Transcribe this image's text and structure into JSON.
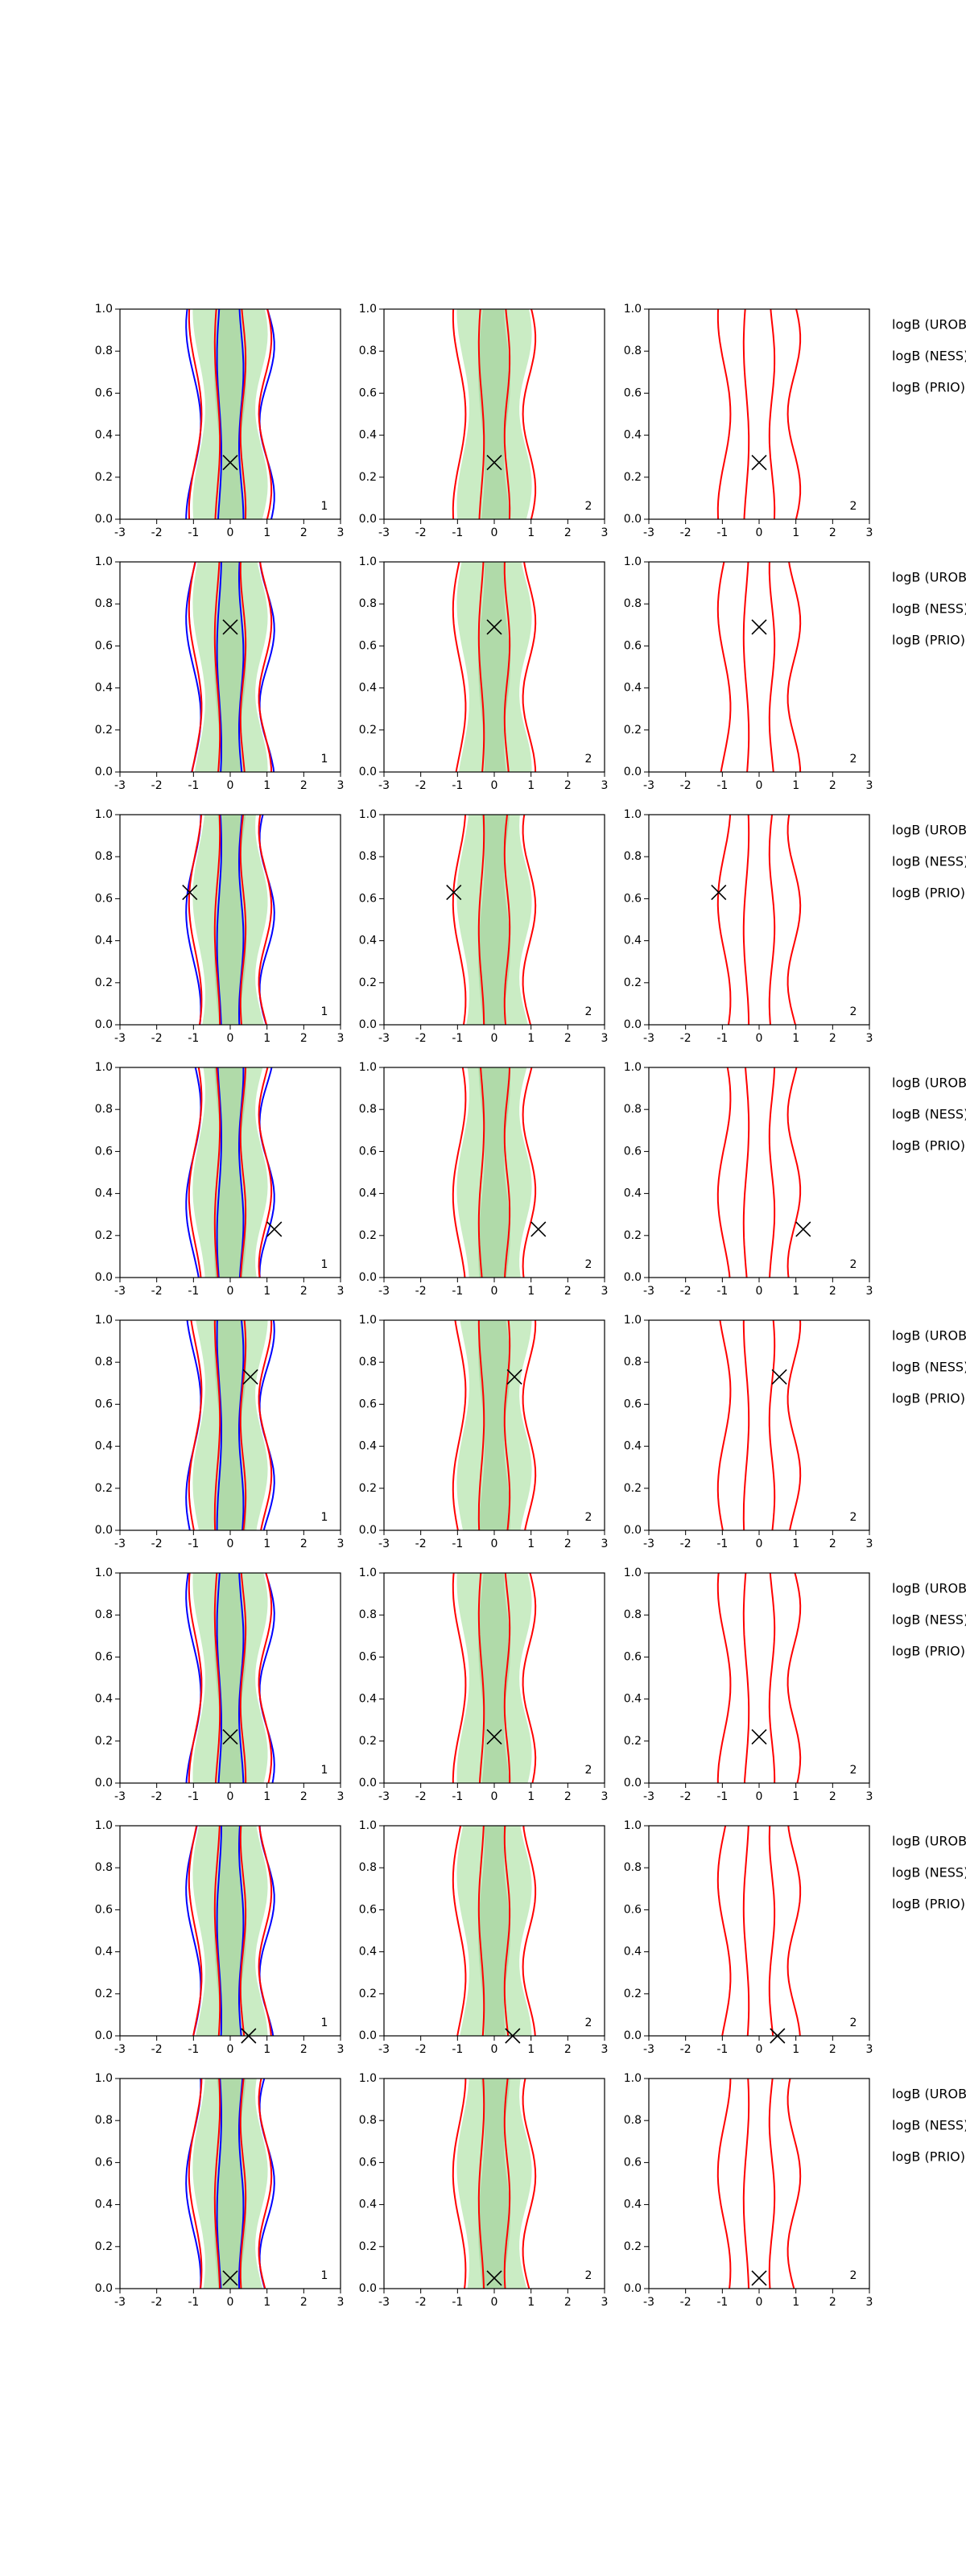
{
  "chart_data": [
    {
      "type": "contour",
      "xlim": [
        -3,
        3
      ],
      "xticks": [
        -3,
        -2,
        -1,
        0,
        1,
        2,
        3
      ],
      "ylim": [
        0,
        1
      ],
      "yticks": [
        {
          "value": 0,
          "label": "0.0"
        },
        {
          "value": 0.2,
          "label": "0.2"
        },
        {
          "value": 0.4,
          "label": "0.4"
        },
        {
          "value": 0.6,
          "label": "0.6"
        },
        {
          "value": 0.8,
          "label": "0.8"
        },
        {
          "value": 1,
          "label": "1.0"
        }
      ],
      "marker": {
        "x": 0,
        "y": 0.27
      },
      "label": "1"
    },
    {
      "type": "contour",
      "xlim": [
        -3,
        3
      ],
      "xticks": [
        -3,
        -2,
        -1,
        0,
        1,
        2,
        3
      ],
      "ylim": [
        0,
        1
      ],
      "yticks": [
        {
          "value": 0,
          "label": "0.0"
        },
        {
          "value": 0.2,
          "label": "0.2"
        },
        {
          "value": 0.4,
          "label": "0.4"
        },
        {
          "value": 0.6,
          "label": "0.6"
        },
        {
          "value": 0.8,
          "label": "0.8"
        },
        {
          "value": 1,
          "label": "1.0"
        }
      ],
      "marker": {
        "x": 0,
        "y": 0.27
      },
      "label": "2"
    },
    {
      "type": "contour",
      "xlim": [
        -3,
        3
      ],
      "xticks": [
        -3,
        -2,
        -1,
        0,
        1,
        2,
        3
      ],
      "ylim": [
        0,
        1
      ],
      "yticks": [
        {
          "value": 0,
          "label": "0.0"
        },
        {
          "value": 0.2,
          "label": "0.2"
        },
        {
          "value": 0.4,
          "label": "0.4"
        },
        {
          "value": 0.6,
          "label": "0.6"
        },
        {
          "value": 0.8,
          "label": "0.8"
        },
        {
          "value": 1,
          "label": "1.0"
        }
      ],
      "marker": {
        "x": 0,
        "y": 0.27
      },
      "label": "2"
    },
    {
      "type": "contour",
      "xlim": [
        -3,
        3
      ],
      "xticks": [
        -3,
        -2,
        -1,
        0,
        1,
        2,
        3
      ],
      "ylim": [
        0,
        1
      ],
      "yticks": [
        {
          "value": 0,
          "label": "0.0"
        },
        {
          "value": 0.2,
          "label": "0.2"
        },
        {
          "value": 0.4,
          "label": "0.4"
        },
        {
          "value": 0.6,
          "label": "0.6"
        },
        {
          "value": 0.8,
          "label": "0.8"
        },
        {
          "value": 1,
          "label": "1.0"
        }
      ],
      "marker": {
        "x": 0,
        "y": 0.69
      },
      "label": "1"
    },
    {
      "type": "contour",
      "xlim": [
        -3,
        3
      ],
      "xticks": [
        -3,
        -2,
        -1,
        0,
        1,
        2,
        3
      ],
      "ylim": [
        0,
        1
      ],
      "yticks": [
        {
          "value": 0,
          "label": "0.0"
        },
        {
          "value": 0.2,
          "label": "0.2"
        },
        {
          "value": 0.4,
          "label": "0.4"
        },
        {
          "value": 0.6,
          "label": "0.6"
        },
        {
          "value": 0.8,
          "label": "0.8"
        },
        {
          "value": 1,
          "label": "1.0"
        }
      ],
      "marker": {
        "x": 0,
        "y": 0.69
      },
      "label": "2"
    },
    {
      "type": "contour",
      "xlim": [
        -3,
        3
      ],
      "xticks": [
        -3,
        -2,
        -1,
        0,
        1,
        2,
        3
      ],
      "ylim": [
        0,
        1
      ],
      "yticks": [
        {
          "value": 0,
          "label": "0.0"
        },
        {
          "value": 0.2,
          "label": "0.2"
        },
        {
          "value": 0.4,
          "label": "0.4"
        },
        {
          "value": 0.6,
          "label": "0.6"
        },
        {
          "value": 0.8,
          "label": "0.8"
        },
        {
          "value": 1,
          "label": "1.0"
        }
      ],
      "marker": {
        "x": 0,
        "y": 0.69
      },
      "label": "2"
    },
    {
      "type": "contour",
      "xlim": [
        -3,
        3
      ],
      "xticks": [
        -3,
        -2,
        -1,
        0,
        1,
        2,
        3
      ],
      "ylim": [
        0,
        1
      ],
      "yticks": [
        {
          "value": 0,
          "label": "0.0"
        },
        {
          "value": 0.2,
          "label": "0.2"
        },
        {
          "value": 0.4,
          "label": "0.4"
        },
        {
          "value": 0.6,
          "label": "0.6"
        },
        {
          "value": 0.8,
          "label": "0.8"
        },
        {
          "value": 1,
          "label": "1.0"
        }
      ],
      "marker": {
        "x": -1.1,
        "y": 0.63
      },
      "label": "1"
    },
    {
      "type": "contour",
      "xlim": [
        -3,
        3
      ],
      "xticks": [
        -3,
        -2,
        -1,
        0,
        1,
        2,
        3
      ],
      "ylim": [
        0,
        1
      ],
      "yticks": [
        {
          "value": 0,
          "label": "0.0"
        },
        {
          "value": 0.2,
          "label": "0.2"
        },
        {
          "value": 0.4,
          "label": "0.4"
        },
        {
          "value": 0.6,
          "label": "0.6"
        },
        {
          "value": 0.8,
          "label": "0.8"
        },
        {
          "value": 1,
          "label": "1.0"
        }
      ],
      "marker": {
        "x": -1.1,
        "y": 0.63
      },
      "label": "2"
    },
    {
      "type": "contour",
      "xlim": [
        -3,
        3
      ],
      "xticks": [
        -3,
        -2,
        -1,
        0,
        1,
        2,
        3
      ],
      "ylim": [
        0,
        1
      ],
      "yticks": [
        {
          "value": 0,
          "label": "0.0"
        },
        {
          "value": 0.2,
          "label": "0.2"
        },
        {
          "value": 0.4,
          "label": "0.4"
        },
        {
          "value": 0.6,
          "label": "0.6"
        },
        {
          "value": 0.8,
          "label": "0.8"
        },
        {
          "value": 1,
          "label": "1.0"
        }
      ],
      "marker": {
        "x": -1.1,
        "y": 0.63
      },
      "label": "2"
    },
    {
      "type": "contour",
      "xlim": [
        -3,
        3
      ],
      "xticks": [
        -3,
        -2,
        -1,
        0,
        1,
        2,
        3
      ],
      "ylim": [
        0,
        1
      ],
      "yticks": [
        {
          "value": 0,
          "label": "0.0"
        },
        {
          "value": 0.2,
          "label": "0.2"
        },
        {
          "value": 0.4,
          "label": "0.4"
        },
        {
          "value": 0.6,
          "label": "0.6"
        },
        {
          "value": 0.8,
          "label": "0.8"
        },
        {
          "value": 1,
          "label": "1.0"
        }
      ],
      "marker": {
        "x": 1.2,
        "y": 0.23
      },
      "label": "1"
    },
    {
      "type": "contour",
      "xlim": [
        -3,
        3
      ],
      "xticks": [
        -3,
        -2,
        -1,
        0,
        1,
        2,
        3
      ],
      "ylim": [
        0,
        1
      ],
      "yticks": [
        {
          "value": 0,
          "label": "0.0"
        },
        {
          "value": 0.2,
          "label": "0.2"
        },
        {
          "value": 0.4,
          "label": "0.4"
        },
        {
          "value": 0.6,
          "label": "0.6"
        },
        {
          "value": 0.8,
          "label": "0.8"
        },
        {
          "value": 1,
          "label": "1.0"
        }
      ],
      "marker": {
        "x": 1.2,
        "y": 0.23
      },
      "label": "2"
    },
    {
      "type": "contour",
      "xlim": [
        -3,
        3
      ],
      "xticks": [
        -3,
        -2,
        -1,
        0,
        1,
        2,
        3
      ],
      "ylim": [
        0,
        1
      ],
      "yticks": [
        {
          "value": 0,
          "label": "0.0"
        },
        {
          "value": 0.2,
          "label": "0.2"
        },
        {
          "value": 0.4,
          "label": "0.4"
        },
        {
          "value": 0.6,
          "label": "0.6"
        },
        {
          "value": 0.8,
          "label": "0.8"
        },
        {
          "value": 1,
          "label": "1.0"
        }
      ],
      "marker": {
        "x": 1.2,
        "y": 0.23
      },
      "label": "2"
    },
    {
      "type": "contour",
      "xlim": [
        -3,
        3
      ],
      "xticks": [
        -3,
        -2,
        -1,
        0,
        1,
        2,
        3
      ],
      "ylim": [
        0,
        1
      ],
      "yticks": [
        {
          "value": 0,
          "label": "0.0"
        },
        {
          "value": 0.2,
          "label": "0.2"
        },
        {
          "value": 0.4,
          "label": "0.4"
        },
        {
          "value": 0.6,
          "label": "0.6"
        },
        {
          "value": 0.8,
          "label": "0.8"
        },
        {
          "value": 1,
          "label": "1.0"
        }
      ],
      "marker": {
        "x": 0.55,
        "y": 0.73
      },
      "label": "1"
    },
    {
      "type": "contour",
      "xlim": [
        -3,
        3
      ],
      "xticks": [
        -3,
        -2,
        -1,
        0,
        1,
        2,
        3
      ],
      "ylim": [
        0,
        1
      ],
      "yticks": [
        {
          "value": 0,
          "label": "0.0"
        },
        {
          "value": 0.2,
          "label": "0.2"
        },
        {
          "value": 0.4,
          "label": "0.4"
        },
        {
          "value": 0.6,
          "label": "0.6"
        },
        {
          "value": 0.8,
          "label": "0.8"
        },
        {
          "value": 1,
          "label": "1.0"
        }
      ],
      "marker": {
        "x": 0.55,
        "y": 0.73
      },
      "label": "2"
    },
    {
      "type": "contour",
      "xlim": [
        -3,
        3
      ],
      "xticks": [
        -3,
        -2,
        -1,
        0,
        1,
        2,
        3
      ],
      "ylim": [
        0,
        1
      ],
      "yticks": [
        {
          "value": 0,
          "label": "0.0"
        },
        {
          "value": 0.2,
          "label": "0.2"
        },
        {
          "value": 0.4,
          "label": "0.4"
        },
        {
          "value": 0.6,
          "label": "0.6"
        },
        {
          "value": 0.8,
          "label": "0.8"
        },
        {
          "value": 1,
          "label": "1.0"
        }
      ],
      "marker": {
        "x": 0.55,
        "y": 0.73
      },
      "label": "2"
    },
    {
      "type": "contour",
      "xlim": [
        -3,
        3
      ],
      "xticks": [
        -3,
        -2,
        -1,
        0,
        1,
        2,
        3
      ],
      "ylim": [
        0,
        1
      ],
      "yticks": [
        {
          "value": 0,
          "label": "0.0"
        },
        {
          "value": 0.2,
          "label": "0.2"
        },
        {
          "value": 0.4,
          "label": "0.4"
        },
        {
          "value": 0.6,
          "label": "0.6"
        },
        {
          "value": 0.8,
          "label": "0.8"
        },
        {
          "value": 1,
          "label": "1.0"
        }
      ],
      "marker": {
        "x": 0,
        "y": 0.22
      },
      "label": "1"
    },
    {
      "type": "contour",
      "xlim": [
        -3,
        3
      ],
      "xticks": [
        -3,
        -2,
        -1,
        0,
        1,
        2,
        3
      ],
      "ylim": [
        0,
        1
      ],
      "yticks": [
        {
          "value": 0,
          "label": "0.0"
        },
        {
          "value": 0.2,
          "label": "0.2"
        },
        {
          "value": 0.4,
          "label": "0.4"
        },
        {
          "value": 0.6,
          "label": "0.6"
        },
        {
          "value": 0.8,
          "label": "0.8"
        },
        {
          "value": 1,
          "label": "1.0"
        }
      ],
      "marker": {
        "x": 0,
        "y": 0.22
      },
      "label": "2"
    },
    {
      "type": "contour",
      "xlim": [
        -3,
        3
      ],
      "xticks": [
        -3,
        -2,
        -1,
        0,
        1,
        2,
        3
      ],
      "ylim": [
        0,
        1
      ],
      "yticks": [
        {
          "value": 0,
          "label": "0.0"
        },
        {
          "value": 0.2,
          "label": "0.2"
        },
        {
          "value": 0.4,
          "label": "0.4"
        },
        {
          "value": 0.6,
          "label": "0.6"
        },
        {
          "value": 0.8,
          "label": "0.8"
        },
        {
          "value": 1,
          "label": "1.0"
        }
      ],
      "marker": {
        "x": 0,
        "y": 0.22
      },
      "label": "2"
    },
    {
      "type": "contour",
      "xlim": [
        -3,
        3
      ],
      "xticks": [
        -3,
        -2,
        -1,
        0,
        1,
        2,
        3
      ],
      "ylim": [
        0,
        1
      ],
      "yticks": [
        {
          "value": 0,
          "label": "0.0"
        },
        {
          "value": 0.2,
          "label": "0.2"
        },
        {
          "value": 0.4,
          "label": "0.4"
        },
        {
          "value": 0.6,
          "label": "0.6"
        },
        {
          "value": 0.8,
          "label": "0.8"
        },
        {
          "value": 1,
          "label": "1.0"
        }
      ],
      "marker": {
        "x": 0.5,
        "y": 0
      },
      "label": "1"
    },
    {
      "type": "contour",
      "xlim": [
        -3,
        3
      ],
      "xticks": [
        -3,
        -2,
        -1,
        0,
        1,
        2,
        3
      ],
      "ylim": [
        0,
        1
      ],
      "yticks": [
        {
          "value": 0,
          "label": "0.0"
        },
        {
          "value": 0.2,
          "label": "0.2"
        },
        {
          "value": 0.4,
          "label": "0.4"
        },
        {
          "value": 0.6,
          "label": "0.6"
        },
        {
          "value": 0.8,
          "label": "0.8"
        },
        {
          "value": 1,
          "label": "1.0"
        }
      ],
      "marker": {
        "x": 0.5,
        "y": 0
      },
      "label": "2"
    },
    {
      "type": "contour",
      "xlim": [
        -3,
        3
      ],
      "xticks": [
        -3,
        -2,
        -1,
        0,
        1,
        2,
        3
      ],
      "ylim": [
        0,
        1
      ],
      "yticks": [
        {
          "value": 0,
          "label": "0.0"
        },
        {
          "value": 0.2,
          "label": "0.2"
        },
        {
          "value": 0.4,
          "label": "0.4"
        },
        {
          "value": 0.6,
          "label": "0.6"
        },
        {
          "value": 0.8,
          "label": "0.8"
        },
        {
          "value": 1,
          "label": "1.0"
        }
      ],
      "marker": {
        "x": 0.5,
        "y": 0
      },
      "label": "2"
    },
    {
      "type": "contour",
      "xlim": [
        -3,
        3
      ],
      "xticks": [
        -3,
        -2,
        -1,
        0,
        1,
        2,
        3
      ],
      "ylim": [
        0,
        1
      ],
      "yticks": [
        {
          "value": 0,
          "label": "0.0"
        },
        {
          "value": 0.2,
          "label": "0.2"
        },
        {
          "value": 0.4,
          "label": "0.4"
        },
        {
          "value": 0.6,
          "label": "0.6"
        },
        {
          "value": 0.8,
          "label": "0.8"
        },
        {
          "value": 1,
          "label": "1.0"
        }
      ],
      "marker": {
        "x": 0,
        "y": 0.05
      },
      "label": "1"
    },
    {
      "type": "contour",
      "xlim": [
        -3,
        3
      ],
      "xticks": [
        -3,
        -2,
        -1,
        0,
        1,
        2,
        3
      ],
      "ylim": [
        0,
        1
      ],
      "yticks": [
        {
          "value": 0,
          "label": "0.0"
        },
        {
          "value": 0.2,
          "label": "0.2"
        },
        {
          "value": 0.4,
          "label": "0.4"
        },
        {
          "value": 0.6,
          "label": "0.6"
        },
        {
          "value": 0.8,
          "label": "0.8"
        },
        {
          "value": 1,
          "label": "1.0"
        }
      ],
      "marker": {
        "x": 0,
        "y": 0.05
      },
      "label": "2"
    },
    {
      "type": "contour",
      "xlim": [
        -3,
        3
      ],
      "xticks": [
        -3,
        -2,
        -1,
        0,
        1,
        2,
        3
      ],
      "ylim": [
        0,
        1
      ],
      "yticks": [
        {
          "value": 0,
          "label": "0.0"
        },
        {
          "value": 0.2,
          "label": "0.2"
        },
        {
          "value": 0.4,
          "label": "0.4"
        },
        {
          "value": 0.6,
          "label": "0.6"
        },
        {
          "value": 0.8,
          "label": "0.8"
        },
        {
          "value": 1,
          "label": "1.0"
        }
      ],
      "marker": {
        "x": 0,
        "y": 0.05
      },
      "label": "2"
    }
  ],
  "side_labels": [
    [
      "logB (UROB) =",
      "logB (NESS) =",
      "logB (PRIO) ="
    ],
    [
      "logB (UROB) =",
      "logB (NESS) =",
      "logB (PRIO) ="
    ],
    [
      "logB (UROB) =",
      "logB (NESS) =",
      "logB (PRIO) ="
    ],
    [
      "logB (UROB) =",
      "logB (NESS) =",
      "logB (PRIO) ="
    ],
    [
      "logB (UROB) =",
      "logB (NESS) =",
      "logB (PRIO) ="
    ],
    [
      "logB (UROB) =",
      "logB (NESS) =",
      "logB (PRIO) ="
    ],
    [
      "logB (UROB) =",
      "logB (NESS) =",
      "logB (PRIO) ="
    ],
    [
      "logB (UROB) =",
      "logB (NESS) =",
      "logB (PRIO) ="
    ]
  ]
}
